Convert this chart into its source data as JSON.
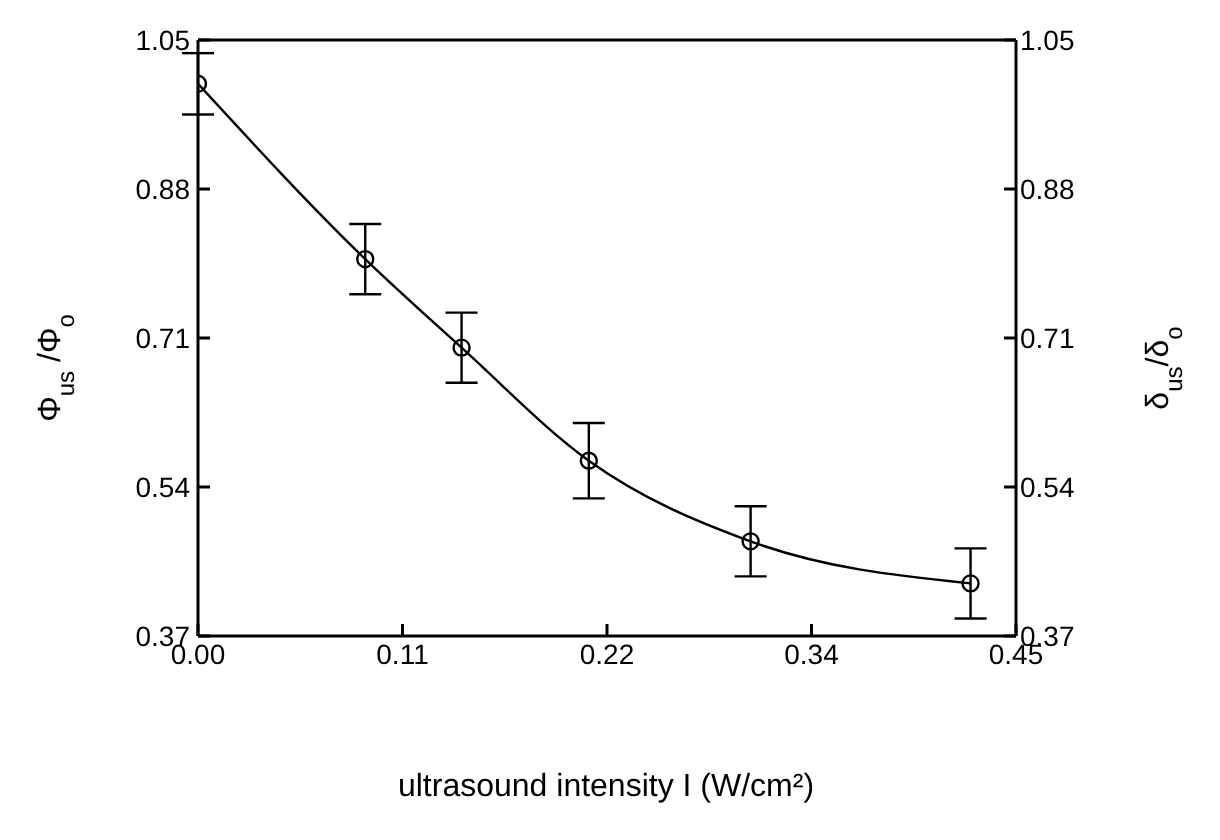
{
  "chart_data": {
    "type": "line",
    "xlabel": "ultrasound intensity   I  (W/cm²)",
    "ylabel": "Φ$_{us}$ /Φ$_{o}$",
    "y2label": "δ$_{us}$/δ$_{o}$",
    "x": [
      0.0,
      0.092,
      0.145,
      0.215,
      0.304,
      0.425
    ],
    "series": [
      {
        "color": "#000000",
        "values": [
          1.0,
          0.8,
          0.699,
          0.57,
          0.478,
          0.43
        ],
        "errors": [
          0.035,
          0.04,
          0.04,
          0.043,
          0.04,
          0.04
        ]
      }
    ],
    "marker": "circle",
    "line_style": "solid",
    "xlim": [
      0,
      0.45
    ],
    "xticks": [
      {
        "value": 0,
        "label": "0.00"
      },
      {
        "value": 0.1125,
        "label": "0.11"
      },
      {
        "value": 0.225,
        "label": "0.22"
      },
      {
        "value": 0.3375,
        "label": "0.34"
      },
      {
        "value": 0.45,
        "label": "0.45"
      }
    ],
    "ylim": [
      0.37,
      1.05
    ],
    "yticks": [
      0.37,
      0.54,
      0.71,
      0.88,
      1.05
    ],
    "y2lim": [
      0.37,
      1.05
    ],
    "y2ticks": [
      0.37,
      0.54,
      0.71,
      0.88,
      1.05
    ],
    "grid": false,
    "legend": false
  }
}
